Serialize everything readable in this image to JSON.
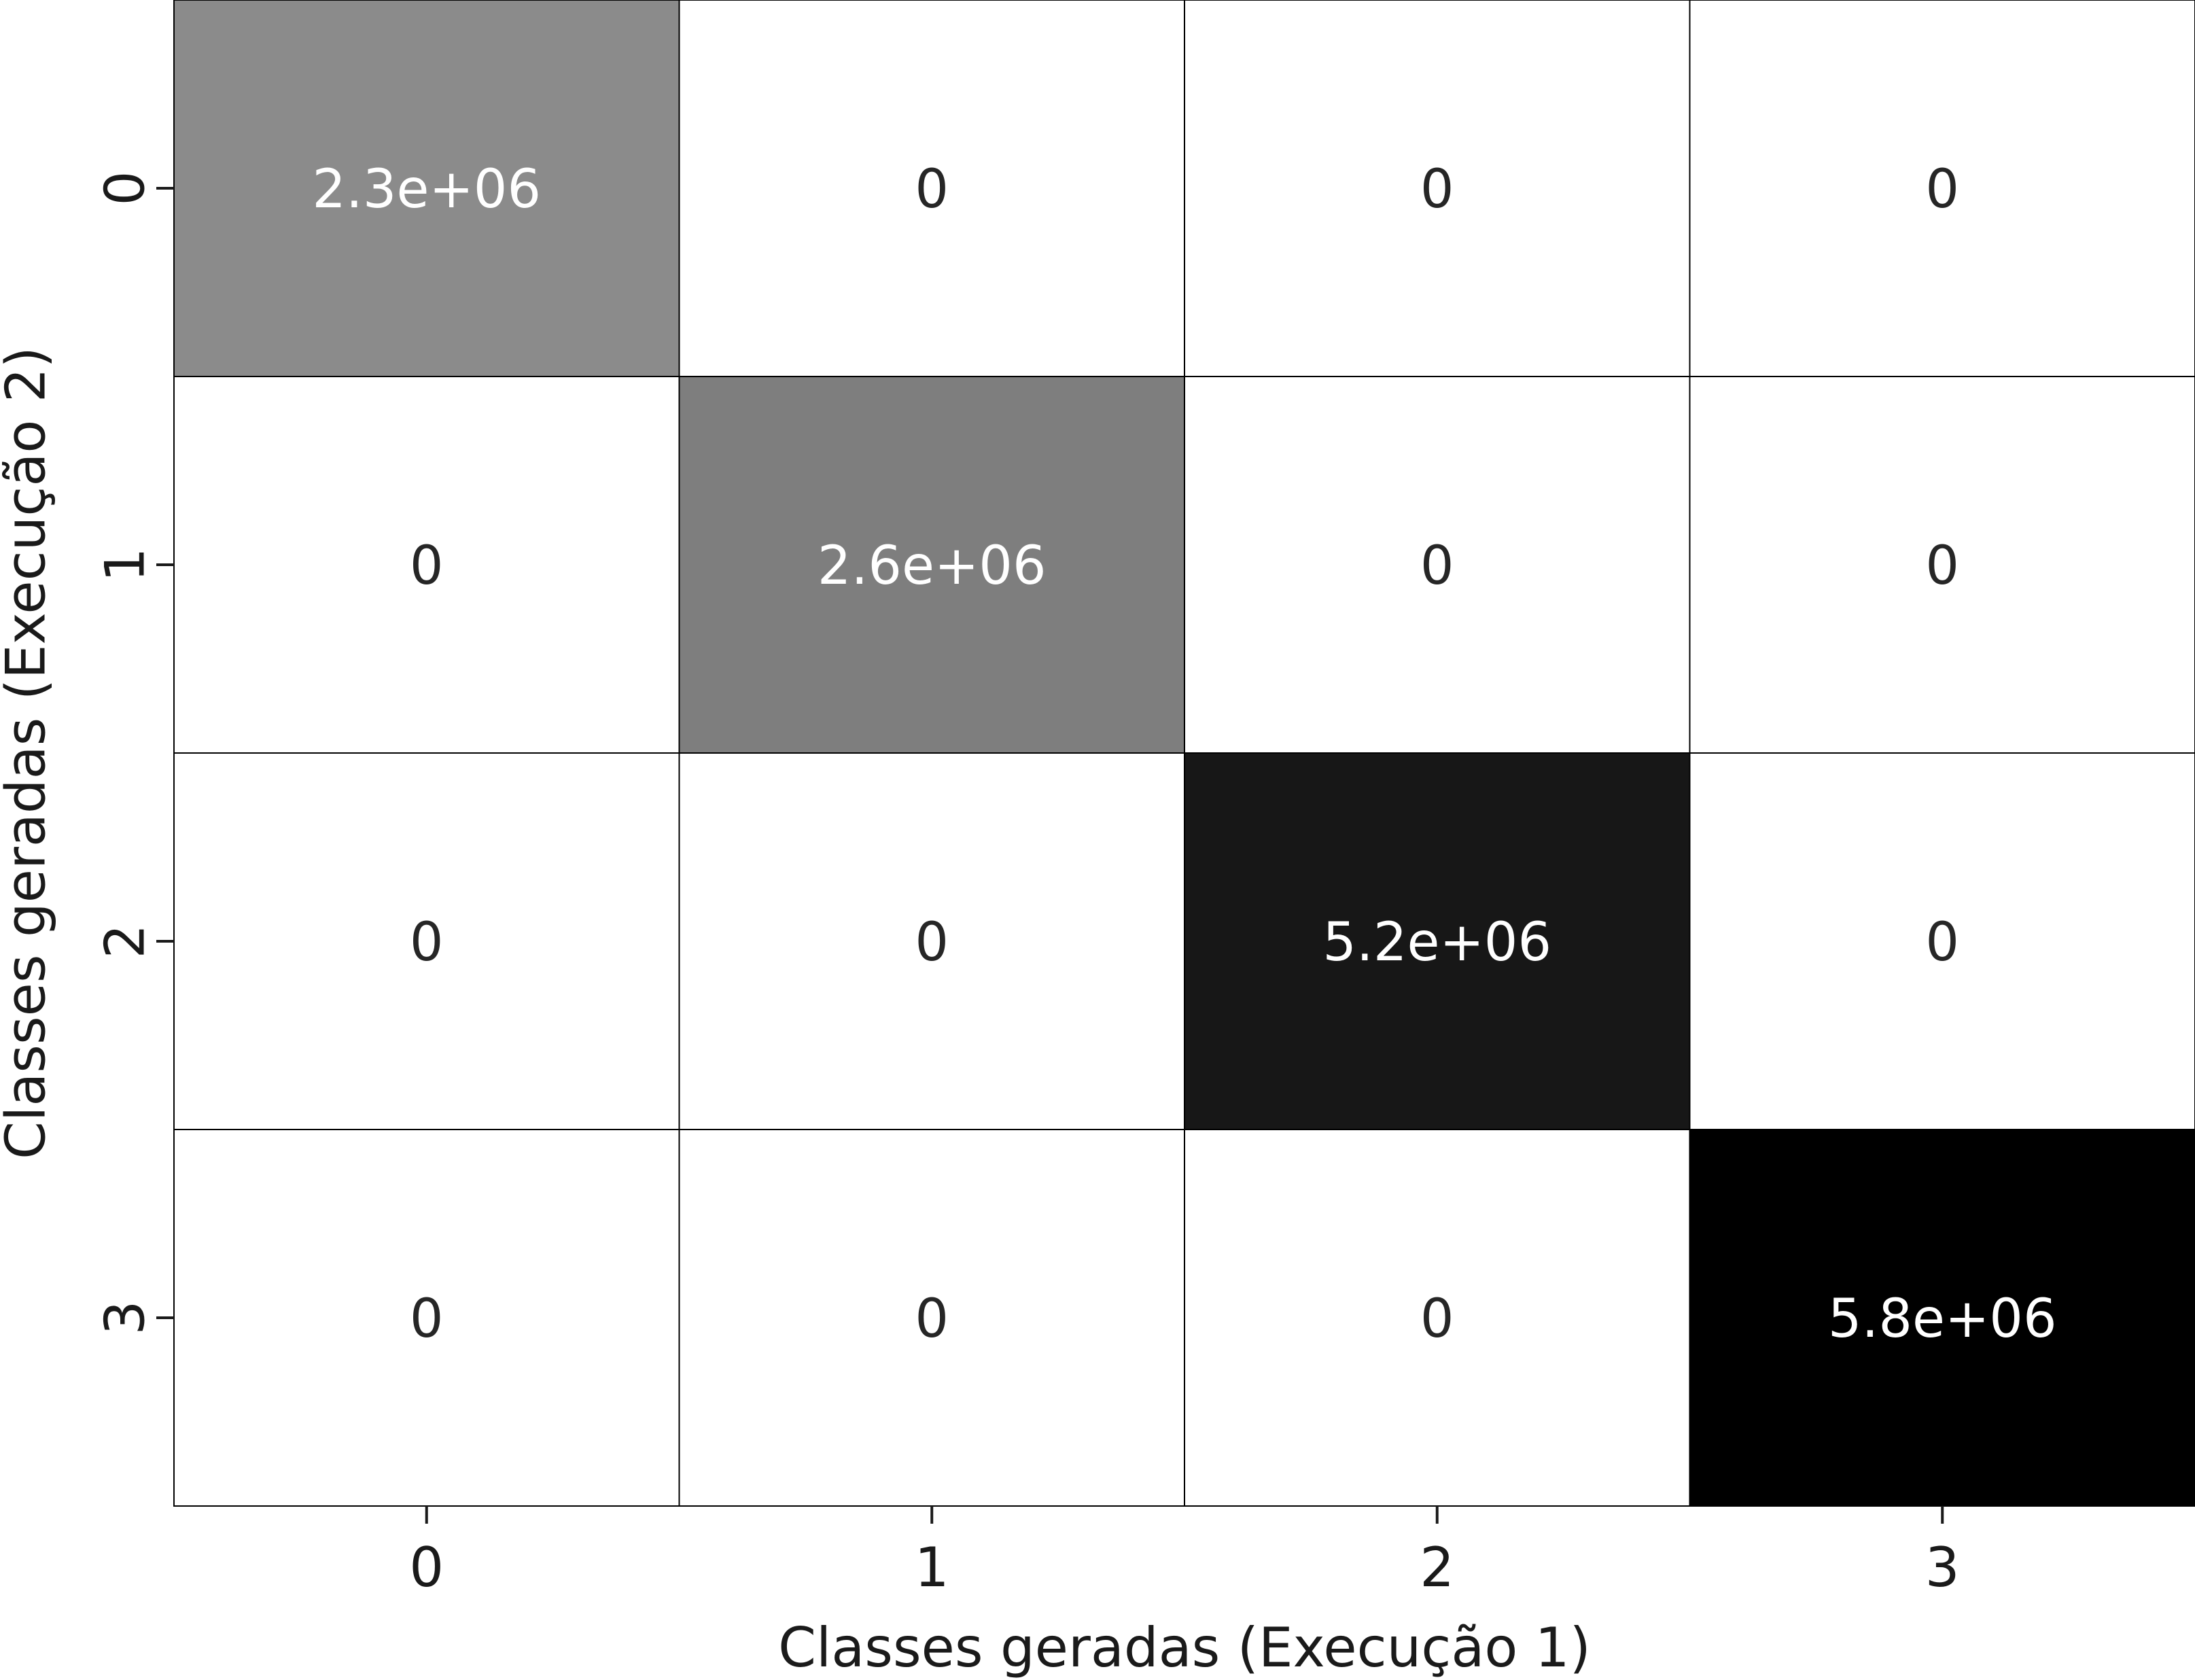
{
  "chart_data": {
    "type": "heatmap",
    "title": "",
    "xlabel": "Classes geradas (Execução 1)",
    "ylabel": "Classes geradas (Execução 2)",
    "x_categories": [
      "0",
      "1",
      "2",
      "3"
    ],
    "y_categories": [
      "0",
      "1",
      "2",
      "3"
    ],
    "values": [
      [
        2300000,
        0,
        0,
        0
      ],
      [
        0,
        2600000,
        0,
        0
      ],
      [
        0,
        0,
        5200000,
        0
      ],
      [
        0,
        0,
        0,
        5800000
      ]
    ],
    "cell_labels": [
      [
        "2.3e+06",
        "0",
        "0",
        "0"
      ],
      [
        "0",
        "2.6e+06",
        "0",
        "0"
      ],
      [
        "0",
        "0",
        "5.2e+06",
        "0"
      ],
      [
        "0",
        "0",
        "0",
        "5.8e+06"
      ]
    ],
    "colormap": "Greys",
    "color_min": "#ffffff",
    "color_max": "#000000",
    "vmin": 0,
    "vmax": 5800000,
    "colorbar": false,
    "light_text_color": "#ffffff",
    "dark_text_color": "#262626",
    "grid_line_color": "#000000"
  }
}
